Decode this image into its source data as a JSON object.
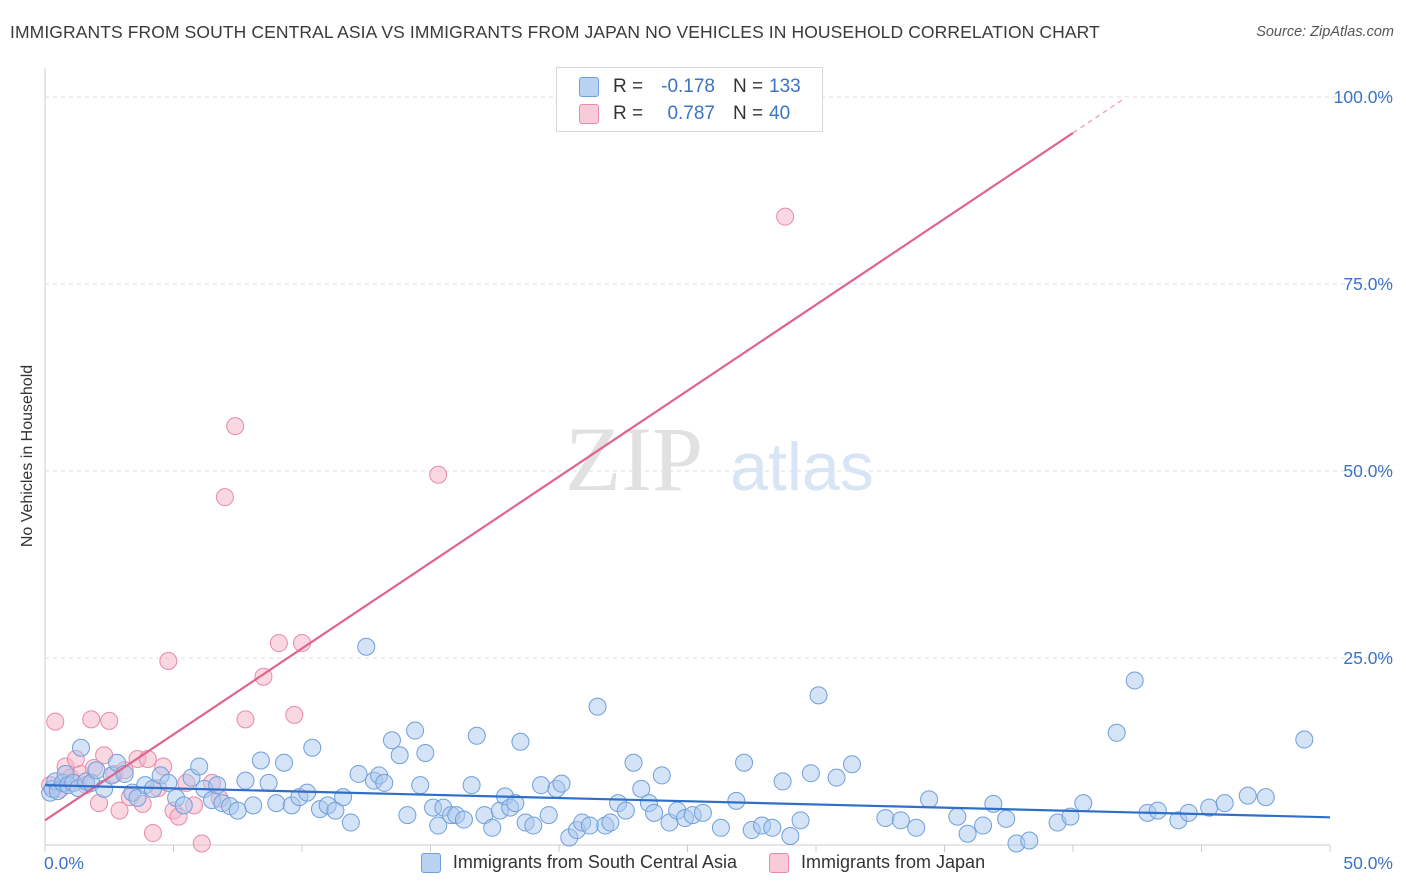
{
  "header": {
    "title": "IMMIGRANTS FROM SOUTH CENTRAL ASIA VS IMMIGRANTS FROM JAPAN NO VEHICLES IN HOUSEHOLD CORRELATION CHART",
    "source": "Source: ZipAtlas.com"
  },
  "watermark": {
    "zip": "ZIP",
    "atlas": "atlas"
  },
  "legend": {
    "rows": [
      {
        "r_label": "R =",
        "r_value": "-0.178",
        "n_label": "N =",
        "n_value": "133"
      },
      {
        "r_label": "R =",
        "r_value": "0.787",
        "n_label": "N =",
        "n_value": "40"
      }
    ]
  },
  "colors": {
    "blue_fill": "#a9c7ee",
    "blue_stroke": "#6f9fdc",
    "blue_line": "#2f6fc8",
    "pink_fill": "#f4b8cb",
    "pink_stroke": "#e98aa8",
    "pink_line": "#e0648c",
    "tick_text": "#3b73c5",
    "grid": "#dddddd"
  },
  "chart_data": {
    "type": "scatter",
    "title": "IMMIGRANTS FROM SOUTH CENTRAL ASIA VS IMMIGRANTS FROM JAPAN NO VEHICLES IN HOUSEHOLD CORRELATION CHART",
    "xlabel": "",
    "ylabel": "No Vehicles in Household",
    "xlim": [
      0,
      50
    ],
    "ylim": [
      0,
      100
    ],
    "x_tick_labels": [
      "0.0%",
      "50.0%"
    ],
    "y_ticks": [
      25,
      50,
      75,
      100
    ],
    "y_tick_labels": [
      "25.0%",
      "50.0%",
      "75.0%",
      "100.0%"
    ],
    "grid": true,
    "legend_position": "bottom",
    "series": [
      {
        "name": "Immigrants from South Central Asia",
        "color": "blue",
        "R": -0.178,
        "N": 133,
        "trend": {
          "x": [
            0,
            50
          ],
          "y": [
            8.0,
            3.7
          ]
        },
        "points": [
          [
            0.2,
            7
          ],
          [
            0.3,
            7.5
          ],
          [
            0.4,
            8.5
          ],
          [
            0.5,
            7.2
          ],
          [
            0.7,
            8.3
          ],
          [
            0.8,
            9.5
          ],
          [
            0.9,
            8
          ],
          [
            1.1,
            8.3
          ],
          [
            1.3,
            7.6
          ],
          [
            1.4,
            13
          ],
          [
            1.6,
            8.5
          ],
          [
            1.8,
            8.3
          ],
          [
            2.0,
            10
          ],
          [
            2.3,
            7.5
          ],
          [
            2.6,
            9.3
          ],
          [
            2.8,
            11
          ],
          [
            3.1,
            9.5
          ],
          [
            3.4,
            7
          ],
          [
            3.6,
            6.3
          ],
          [
            3.9,
            8
          ],
          [
            4.2,
            7.5
          ],
          [
            4.5,
            9.3
          ],
          [
            4.8,
            8.3
          ],
          [
            5.1,
            6.3
          ],
          [
            5.4,
            5.3
          ],
          [
            5.7,
            9
          ],
          [
            6.0,
            10.5
          ],
          [
            6.2,
            7.5
          ],
          [
            6.5,
            6
          ],
          [
            6.7,
            8
          ],
          [
            6.9,
            5.6
          ],
          [
            7.2,
            5.2
          ],
          [
            7.5,
            4.6
          ],
          [
            7.8,
            8.6
          ],
          [
            8.1,
            5.3
          ],
          [
            8.4,
            11.3
          ],
          [
            8.7,
            8.3
          ],
          [
            9.0,
            5.6
          ],
          [
            9.3,
            11
          ],
          [
            9.6,
            5.3
          ],
          [
            9.9,
            6.4
          ],
          [
            10.2,
            7
          ],
          [
            10.4,
            13
          ],
          [
            10.7,
            4.8
          ],
          [
            11.0,
            5.3
          ],
          [
            11.3,
            4.6
          ],
          [
            11.6,
            6.4
          ],
          [
            11.9,
            3
          ],
          [
            12.2,
            9.5
          ],
          [
            12.5,
            26.5
          ],
          [
            12.8,
            8.6
          ],
          [
            13.0,
            9.3
          ],
          [
            13.2,
            8.3
          ],
          [
            13.5,
            14
          ],
          [
            13.8,
            12
          ],
          [
            14.1,
            4
          ],
          [
            14.4,
            15.3
          ],
          [
            14.6,
            8
          ],
          [
            14.8,
            12.3
          ],
          [
            15.1,
            5
          ],
          [
            15.3,
            2.6
          ],
          [
            15.5,
            5
          ],
          [
            15.8,
            4
          ],
          [
            16.0,
            4
          ],
          [
            16.3,
            3.4
          ],
          [
            16.6,
            8
          ],
          [
            16.8,
            14.6
          ],
          [
            17.1,
            4
          ],
          [
            17.4,
            2.3
          ],
          [
            17.7,
            4.6
          ],
          [
            17.9,
            6.5
          ],
          [
            18.1,
            5
          ],
          [
            18.3,
            5.6
          ],
          [
            18.5,
            13.8
          ],
          [
            18.7,
            3
          ],
          [
            19.0,
            2.6
          ],
          [
            19.3,
            8
          ],
          [
            19.6,
            4
          ],
          [
            19.9,
            7.5
          ],
          [
            20.1,
            8.2
          ],
          [
            20.4,
            1
          ],
          [
            20.7,
            2
          ],
          [
            20.9,
            3
          ],
          [
            21.2,
            2.6
          ],
          [
            21.5,
            18.5
          ],
          [
            21.8,
            2.6
          ],
          [
            22.0,
            3
          ],
          [
            22.3,
            5.6
          ],
          [
            22.6,
            4.6
          ],
          [
            22.9,
            11
          ],
          [
            23.2,
            7.5
          ],
          [
            23.5,
            5.6
          ],
          [
            23.7,
            4.3
          ],
          [
            24.0,
            9.3
          ],
          [
            24.3,
            3
          ],
          [
            24.6,
            4.6
          ],
          [
            24.9,
            3.6
          ],
          [
            25.2,
            4
          ],
          [
            25.6,
            4.3
          ],
          [
            26.3,
            2.3
          ],
          [
            26.9,
            5.9
          ],
          [
            27.2,
            11
          ],
          [
            27.5,
            2
          ],
          [
            27.9,
            2.6
          ],
          [
            28.3,
            2.3
          ],
          [
            28.7,
            8.5
          ],
          [
            29.0,
            1.2
          ],
          [
            29.4,
            3.3
          ],
          [
            29.8,
            9.6
          ],
          [
            30.1,
            20
          ],
          [
            30.8,
            9
          ],
          [
            31.4,
            10.8
          ],
          [
            32.7,
            3.6
          ],
          [
            33.3,
            3.3
          ],
          [
            33.9,
            2.3
          ],
          [
            34.4,
            6.1
          ],
          [
            35.5,
            3.8
          ],
          [
            35.9,
            1.5
          ],
          [
            36.5,
            2.6
          ],
          [
            36.9,
            5.5
          ],
          [
            37.4,
            3.5
          ],
          [
            37.8,
            0.2
          ],
          [
            38.3,
            0.6
          ],
          [
            39.4,
            3
          ],
          [
            39.9,
            3.8
          ],
          [
            40.4,
            5.6
          ],
          [
            41.7,
            15
          ],
          [
            42.4,
            22
          ],
          [
            42.9,
            4.3
          ],
          [
            43.3,
            4.6
          ],
          [
            44.1,
            3.3
          ],
          [
            44.5,
            4.3
          ],
          [
            45.3,
            5
          ],
          [
            45.9,
            5.6
          ],
          [
            46.8,
            6.6
          ],
          [
            47.5,
            6.4
          ],
          [
            49.0,
            14.1
          ]
        ]
      },
      {
        "name": "Immigrants from Japan",
        "color": "pink",
        "R": 0.787,
        "N": 40,
        "trend": {
          "x": [
            0,
            40
          ],
          "y": [
            3.3,
            95.2
          ]
        },
        "trend_dashed": {
          "x": [
            40,
            42
          ],
          "y": [
            95.2,
            99.8
          ]
        },
        "points": [
          [
            0.2,
            8
          ],
          [
            0.4,
            16.5
          ],
          [
            0.6,
            7.5
          ],
          [
            0.8,
            10.5
          ],
          [
            1.0,
            9
          ],
          [
            1.2,
            11.5
          ],
          [
            1.4,
            9.5
          ],
          [
            1.6,
            8
          ],
          [
            1.8,
            16.8
          ],
          [
            1.9,
            10.3
          ],
          [
            2.1,
            5.6
          ],
          [
            2.3,
            12
          ],
          [
            2.5,
            16.6
          ],
          [
            2.7,
            9.5
          ],
          [
            2.9,
            4.6
          ],
          [
            3.1,
            10
          ],
          [
            3.3,
            6.4
          ],
          [
            3.6,
            11.5
          ],
          [
            3.8,
            5.5
          ],
          [
            4.0,
            11.5
          ],
          [
            4.2,
            1.6
          ],
          [
            4.4,
            7.6
          ],
          [
            4.6,
            10.5
          ],
          [
            4.8,
            24.6
          ],
          [
            5.0,
            4.6
          ],
          [
            5.2,
            3.8
          ],
          [
            5.5,
            8.3
          ],
          [
            5.8,
            5.3
          ],
          [
            6.1,
            0.2
          ],
          [
            6.5,
            8.3
          ],
          [
            6.8,
            6.2
          ],
          [
            7.0,
            46.5
          ],
          [
            7.4,
            56
          ],
          [
            7.8,
            16.8
          ],
          [
            8.5,
            22.5
          ],
          [
            9.1,
            27
          ],
          [
            9.7,
            17.4
          ],
          [
            10.0,
            27
          ],
          [
            15.3,
            49.5
          ],
          [
            28.8,
            84
          ]
        ]
      }
    ]
  }
}
